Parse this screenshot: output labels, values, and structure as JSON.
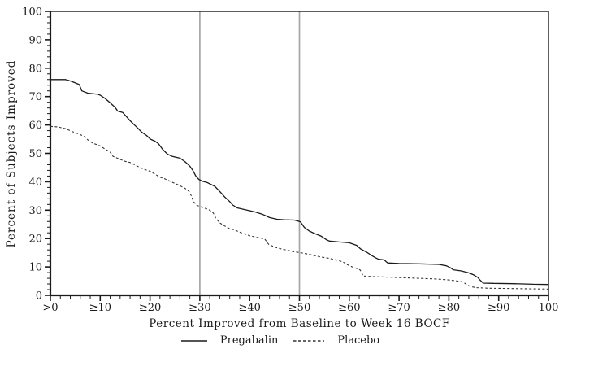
{
  "colors": {
    "background": "#ffffff",
    "frame": "#1a1a1a",
    "text": "#1a1a1a",
    "reference_line": "#a6a6a6"
  },
  "chart_data": {
    "type": "line",
    "title": "",
    "xlabel": "Percent Improved from Baseline to Week 16 BOCF",
    "ylabel": "Percent of Subjects Improved",
    "xlim": [
      0,
      100
    ],
    "ylim": [
      0,
      100
    ],
    "grid": false,
    "legend_position": "bottom",
    "x_tick_values": [
      0,
      10,
      20,
      30,
      40,
      50,
      60,
      70,
      80,
      90,
      100
    ],
    "x_tick_labels": [
      ">0",
      "≥10",
      "≥20",
      "≥30",
      "≥40",
      "≥50",
      "≥60",
      "≥70",
      "≥80",
      "≥90",
      "100"
    ],
    "y_tick_values": [
      0,
      10,
      20,
      30,
      40,
      50,
      60,
      70,
      80,
      90,
      100
    ],
    "minor_tick_step": 2,
    "reference_lines_x": [
      30,
      50
    ],
    "series": [
      {
        "name": "Pregabalin",
        "style": "solid",
        "color": "#1a1a1a",
        "points": [
          [
            0,
            76
          ],
          [
            3,
            76
          ],
          [
            4,
            75.5
          ],
          [
            5,
            74.8
          ],
          [
            5.8,
            74.2
          ],
          [
            6.3,
            72
          ],
          [
            7.5,
            71.2
          ],
          [
            9.5,
            70.8
          ],
          [
            10,
            70.5
          ],
          [
            11,
            69.3
          ],
          [
            12,
            67.8
          ],
          [
            13,
            66.2
          ],
          [
            13.5,
            64.9
          ],
          [
            14.5,
            64.4
          ],
          [
            15,
            63.5
          ],
          [
            16,
            61.5
          ],
          [
            17,
            59.8
          ],
          [
            17.6,
            58.8
          ],
          [
            18.3,
            57.5
          ],
          [
            19.3,
            56.3
          ],
          [
            20.1,
            55
          ],
          [
            21,
            54.3
          ],
          [
            21.7,
            53.4
          ],
          [
            22.5,
            51.5
          ],
          [
            23.5,
            49.7
          ],
          [
            24.5,
            48.9
          ],
          [
            26,
            48.3
          ],
          [
            27,
            47.1
          ],
          [
            28,
            45.5
          ],
          [
            28.6,
            44
          ],
          [
            29.2,
            42
          ],
          [
            29.8,
            40.8
          ],
          [
            30.5,
            40.2
          ],
          [
            31.5,
            39.7
          ],
          [
            33,
            38.4
          ],
          [
            34,
            36.6
          ],
          [
            35,
            34.6
          ],
          [
            36,
            33
          ],
          [
            36.6,
            31.8
          ],
          [
            37.5,
            30.8
          ],
          [
            39,
            30.2
          ],
          [
            41,
            29.4
          ],
          [
            42.5,
            28.6
          ],
          [
            44,
            27.4
          ],
          [
            45.5,
            26.8
          ],
          [
            47,
            26.6
          ],
          [
            49,
            26.5
          ],
          [
            50.2,
            25.9
          ],
          [
            51,
            23.9
          ],
          [
            52,
            22.6
          ],
          [
            53,
            21.8
          ],
          [
            54.3,
            20.9
          ],
          [
            55.5,
            19.5
          ],
          [
            56,
            19.1
          ],
          [
            58,
            18.8
          ],
          [
            60,
            18.5
          ],
          [
            61.5,
            17.6
          ],
          [
            62.3,
            16.3
          ],
          [
            63.5,
            15.2
          ],
          [
            64.5,
            14
          ],
          [
            65.3,
            13.2
          ],
          [
            65.9,
            12.7
          ],
          [
            67,
            12.5
          ],
          [
            67.7,
            11.4
          ],
          [
            70,
            11.2
          ],
          [
            74,
            11.1
          ],
          [
            78,
            10.9
          ],
          [
            79.5,
            10.4
          ],
          [
            80.3,
            9.7
          ],
          [
            80.9,
            9
          ],
          [
            82.5,
            8.6
          ],
          [
            84,
            7.9
          ],
          [
            85,
            7.2
          ],
          [
            85.8,
            6.3
          ],
          [
            86.3,
            5.3
          ],
          [
            86.9,
            4.3
          ],
          [
            89,
            4.2
          ],
          [
            93,
            4.1
          ],
          [
            97,
            3.9
          ],
          [
            100,
            3.8
          ]
        ]
      },
      {
        "name": "Placebo",
        "style": "dashed",
        "color": "#333333",
        "points": [
          [
            0,
            59.5
          ],
          [
            1.5,
            59.3
          ],
          [
            3,
            58.7
          ],
          [
            4.5,
            57.6
          ],
          [
            6,
            56.6
          ],
          [
            7,
            55.7
          ],
          [
            7.4,
            54.9
          ],
          [
            8.5,
            53.6
          ],
          [
            10,
            52.6
          ],
          [
            11,
            51.5
          ],
          [
            12,
            50.4
          ],
          [
            12.6,
            48.9
          ],
          [
            14,
            47.9
          ],
          [
            15,
            47.2
          ],
          [
            16,
            46.8
          ],
          [
            17,
            45.9
          ],
          [
            18,
            45
          ],
          [
            19,
            44.3
          ],
          [
            20,
            43.7
          ],
          [
            21,
            42.7
          ],
          [
            21.9,
            41.7
          ],
          [
            23,
            41
          ],
          [
            24,
            40.2
          ],
          [
            25,
            39.4
          ],
          [
            26,
            38.6
          ],
          [
            27,
            37.7
          ],
          [
            27.8,
            36.7
          ],
          [
            28.3,
            35
          ],
          [
            28.8,
            32.9
          ],
          [
            29.4,
            31.7
          ],
          [
            30.5,
            31
          ],
          [
            31.8,
            30.2
          ],
          [
            32.7,
            29
          ],
          [
            33.2,
            27.2
          ],
          [
            34,
            25.5
          ],
          [
            35,
            24.4
          ],
          [
            35.8,
            23.6
          ],
          [
            37,
            23
          ],
          [
            38.5,
            21.9
          ],
          [
            40,
            21
          ],
          [
            41.5,
            20.4
          ],
          [
            43,
            19.9
          ],
          [
            43.8,
            18
          ],
          [
            45,
            17
          ],
          [
            46,
            16.5
          ],
          [
            47.5,
            15.9
          ],
          [
            49,
            15.3
          ],
          [
            50,
            15.1
          ],
          [
            52,
            14.4
          ],
          [
            54,
            13.6
          ],
          [
            56,
            13
          ],
          [
            57.5,
            12.4
          ],
          [
            58.7,
            11.8
          ],
          [
            59.6,
            10.8
          ],
          [
            60.6,
            10
          ],
          [
            61.6,
            9.4
          ],
          [
            62.2,
            8.9
          ],
          [
            62.8,
            6.8
          ],
          [
            65,
            6.6
          ],
          [
            68,
            6.4
          ],
          [
            71,
            6.2
          ],
          [
            74,
            6
          ],
          [
            77,
            5.8
          ],
          [
            79.5,
            5.5
          ],
          [
            81.5,
            5.1
          ],
          [
            82.8,
            4.7
          ],
          [
            83.5,
            3.9
          ],
          [
            84.3,
            3.1
          ],
          [
            85.5,
            2.7
          ],
          [
            88,
            2.5
          ],
          [
            92,
            2.4
          ],
          [
            96,
            2.3
          ],
          [
            100,
            2.2
          ]
        ]
      }
    ]
  }
}
